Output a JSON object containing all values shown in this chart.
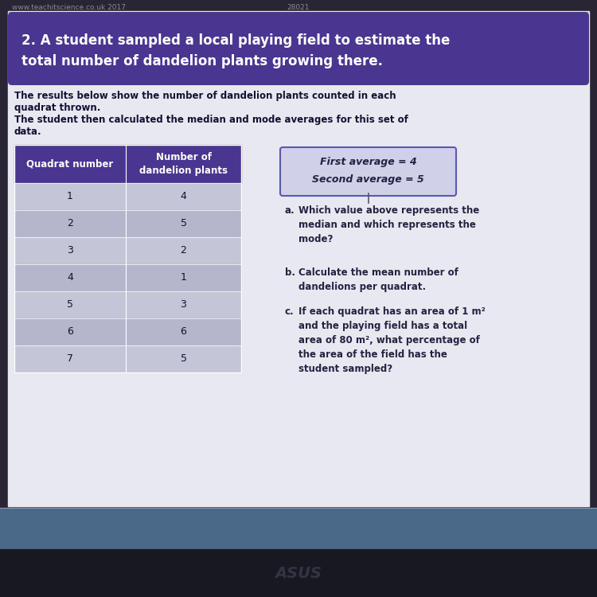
{
  "page_bg": "#2a2535",
  "content_bg": "#e8e8f0",
  "header_bg": "#4a3590",
  "header_text_color": "#ffffff",
  "watermark_left": "www.teachitscience.co.uk 2017",
  "watermark_center": "28021",
  "watermark_color": "#888899",
  "intro_text_line1": "The results below show the number of dandelion plants counted in each",
  "intro_text_line2": "quadrat thrown.",
  "intro_text_line3": "The student then calculated the median and mode averages for this set of",
  "intro_text_line4": "data.",
  "intro_text_color": "#111133",
  "table_header_bg": "#4a3590",
  "table_header_text_color": "#ffffff",
  "table_col1_header": "Quadrat number",
  "table_col2_header": "Number of\ndandelion plants",
  "table_row_bg_odd": "#c5c5d8",
  "table_row_bg_even": "#b5b5cc",
  "table_data": [
    [
      1,
      4
    ],
    [
      2,
      5
    ],
    [
      3,
      2
    ],
    [
      4,
      1
    ],
    [
      5,
      3
    ],
    [
      6,
      6
    ],
    [
      7,
      5
    ]
  ],
  "table_text_color": "#111133",
  "average_box_bg": "#d0d0e8",
  "average_box_border": "#5a5aaa",
  "average_line1": "First average = 4",
  "average_line2": "Second average = 5",
  "average_text_color": "#222244",
  "q_label_color": "#222244",
  "q_text_color": "#222244",
  "bottom_bar_color": "#4a6888",
  "laptop_bg": "#181820",
  "screen_line_color": "#8899aa",
  "header_rounded": 8
}
